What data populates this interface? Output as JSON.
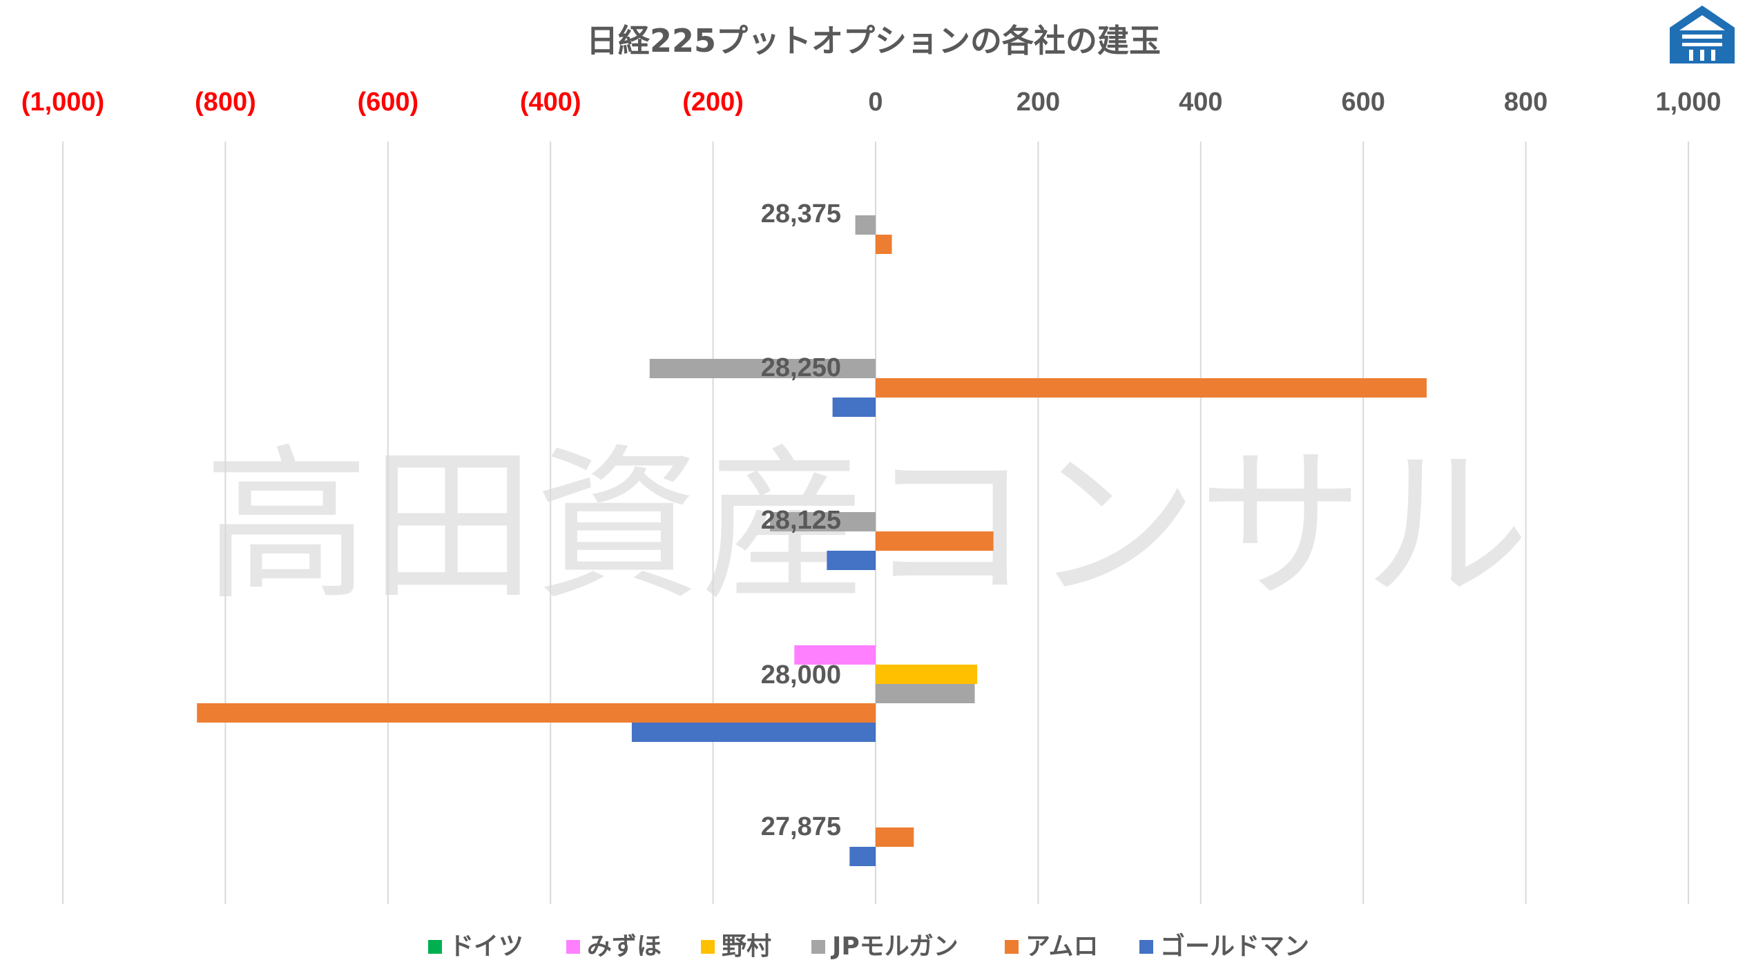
{
  "chart_data": {
    "type": "bar",
    "orientation": "horizontal",
    "title": "日経225プットオプションの各社の建玉",
    "watermark": "高田資産コンサル",
    "xlim": [
      -1000,
      1000
    ],
    "xticks": [
      -1000,
      -800,
      -600,
      -400,
      -200,
      0,
      200,
      400,
      600,
      800,
      1000
    ],
    "xtick_labels": [
      "(1,000)",
      "(800)",
      "(600)",
      "(400)",
      "(200)",
      "0",
      "200",
      "400",
      "600",
      "800",
      "1,000"
    ],
    "negative_tick_color": "#ff0000",
    "positive_tick_color": "#595959",
    "grid": true,
    "legend_position": "bottom",
    "categories": [
      "28,375",
      "28,250",
      "28,125",
      "28,000",
      "27,875"
    ],
    "series": [
      {
        "name": "ドイツ",
        "color": "#00b050",
        "values": [
          0,
          0,
          0,
          0,
          0
        ]
      },
      {
        "name": "みずほ",
        "color": "#ff80ff",
        "values": [
          0,
          0,
          0,
          -100,
          0
        ]
      },
      {
        "name": "野村",
        "color": "#ffc000",
        "values": [
          0,
          0,
          0,
          125,
          0
        ]
      },
      {
        "name": "JPモルガン",
        "color": "#a5a5a5",
        "values": [
          -25,
          -278,
          -130,
          122,
          0
        ]
      },
      {
        "name": "アムロ",
        "color": "#ed7d31",
        "values": [
          20,
          678,
          145,
          -835,
          47
        ]
      },
      {
        "name": "ゴールドマン",
        "color": "#4472c4",
        "values": [
          0,
          -53,
          -60,
          -300,
          -32
        ]
      }
    ]
  }
}
